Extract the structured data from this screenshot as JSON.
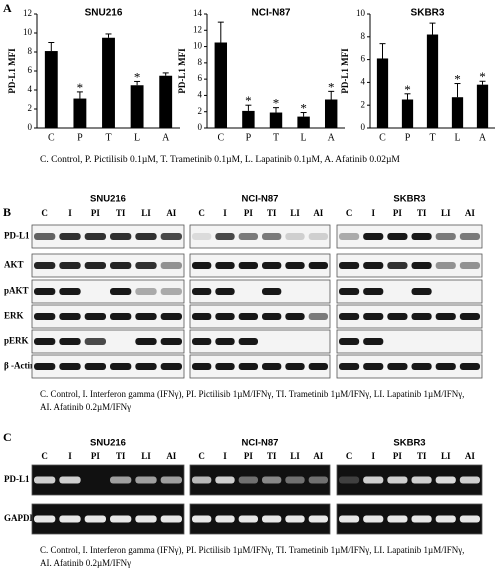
{
  "chart_data": [
    {
      "type": "bar",
      "title": "SNU216",
      "y_label": "PD-L1 MFI",
      "categories": [
        "C",
        "P",
        "T",
        "L",
        "A"
      ],
      "values": [
        8.1,
        3.1,
        9.5,
        4.5,
        5.5
      ],
      "errors": [
        0.9,
        0.7,
        0.4,
        0.4,
        0.3
      ],
      "significance": [
        null,
        "*",
        null,
        "*",
        null
      ],
      "color": "#000000",
      "ylim": [
        0,
        12
      ],
      "yticks": [
        0,
        2,
        4,
        6,
        8,
        10,
        12
      ]
    },
    {
      "type": "bar",
      "title": "NCI-N87",
      "y_label": "PD-L1 MFI",
      "categories": [
        "C",
        "P",
        "T",
        "L",
        "A"
      ],
      "values": [
        10.5,
        2.1,
        1.9,
        1.4,
        3.5
      ],
      "errors": [
        2.5,
        0.7,
        0.6,
        0.5,
        1.0
      ],
      "significance": [
        null,
        "*",
        "*",
        "*",
        "*"
      ],
      "color": "#000000",
      "ylim": [
        0,
        14
      ],
      "yticks": [
        0,
        2,
        4,
        6,
        8,
        10,
        12,
        14
      ]
    },
    {
      "type": "bar",
      "title": "SKBR3",
      "y_label": "PD-L1 MFI",
      "categories": [
        "C",
        "P",
        "T",
        "L",
        "A"
      ],
      "values": [
        6.1,
        2.5,
        8.2,
        2.7,
        3.8
      ],
      "errors": [
        1.3,
        0.5,
        1.0,
        1.2,
        0.3
      ],
      "significance": [
        null,
        "*",
        null,
        "*",
        "*"
      ],
      "color": "#000000",
      "ylim": [
        0,
        10
      ],
      "yticks": [
        0,
        2,
        4,
        6,
        8,
        10
      ]
    }
  ],
  "panel_a": {
    "label": "A",
    "caption": "C. Control, P. Pictilisib 0.1µM, T. Trametinib 0.1µM, L. Lapatinib 0.1µM, A. Afatinib 0.02µM"
  },
  "panel_b": {
    "label": "B",
    "cell_lines": [
      "SNU216",
      "NCI-N87",
      "SKBR3"
    ],
    "lanes": [
      "C",
      "I",
      "PI",
      "TI",
      "LI",
      "AI"
    ],
    "rows": [
      "PD-L1",
      "AKT",
      "pAKT",
      "ERK",
      "pERK",
      "β -Actin"
    ],
    "caption": [
      "C. Control, I. Interferon gamma (IFNγ), PI. Pictilisib  1µM/IFNγ, TI. Trametinib  1µM/IFNγ, LI. Lapatinib  1µM/IFNγ,",
      "AI. Afatinib  0.2µM/IFNγ"
    ]
  },
  "panel_c": {
    "label": "C",
    "cell_lines": [
      "SNU216",
      "NCI-N87",
      "SKBR3"
    ],
    "lanes": [
      "C",
      "I",
      "PI",
      "TI",
      "LI",
      "AI"
    ],
    "rows": [
      "PD-L1",
      "GAPDH"
    ],
    "caption": [
      "C. Control, I. Interferon gamma (IFNγ), PI. Pictilisib  1µM/IFNγ, TI. Trametinib  1µM/IFNγ, LI. Lapatinib  1µM/IFNγ,",
      "AI. Afatinib  0.2µM/IFNγ"
    ]
  }
}
